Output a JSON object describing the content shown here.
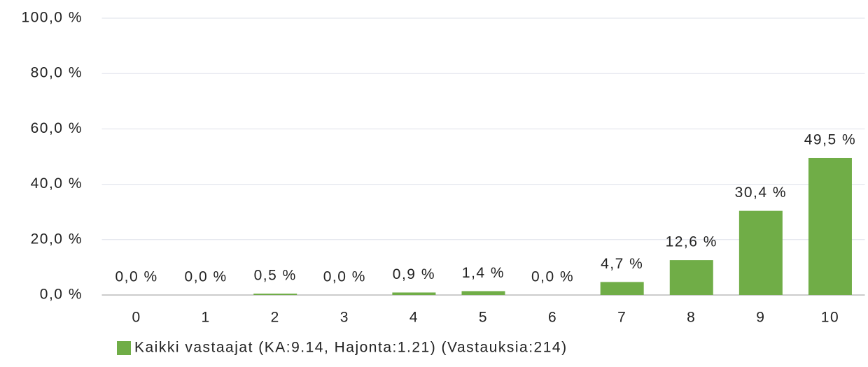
{
  "chart_data": {
    "type": "bar",
    "categories": [
      "0",
      "1",
      "2",
      "3",
      "4",
      "5",
      "6",
      "7",
      "8",
      "9",
      "10"
    ],
    "series": [
      {
        "name": "Kaikki vastaajat (KA:9.14, Hajonta:1.21) (Vastauksia:214)",
        "color": "#70ad47",
        "values": [
          0,
          0,
          0.5,
          0,
          0.9,
          1.4,
          0,
          4.7,
          12.6,
          30.4,
          49.5
        ],
        "value_labels": [
          "0,0 %",
          "0,0 %",
          "0,5 %",
          "0,0 %",
          "0,9 %",
          "1,4 %",
          "0,0 %",
          "4,7 %",
          "12,6 %",
          "30,4 %",
          "49,5 %"
        ]
      }
    ],
    "ylim": [
      0,
      100
    ],
    "yticks": [
      {
        "value": 0,
        "label": "0,0 %"
      },
      {
        "value": 20,
        "label": "20,0 %"
      },
      {
        "value": 40,
        "label": "40,0 %"
      },
      {
        "value": 60,
        "label": "60,0 %"
      },
      {
        "value": 80,
        "label": "80,0 %"
      },
      {
        "value": 100,
        "label": "100,0 %"
      }
    ],
    "grid": true,
    "legend": "bottom"
  }
}
